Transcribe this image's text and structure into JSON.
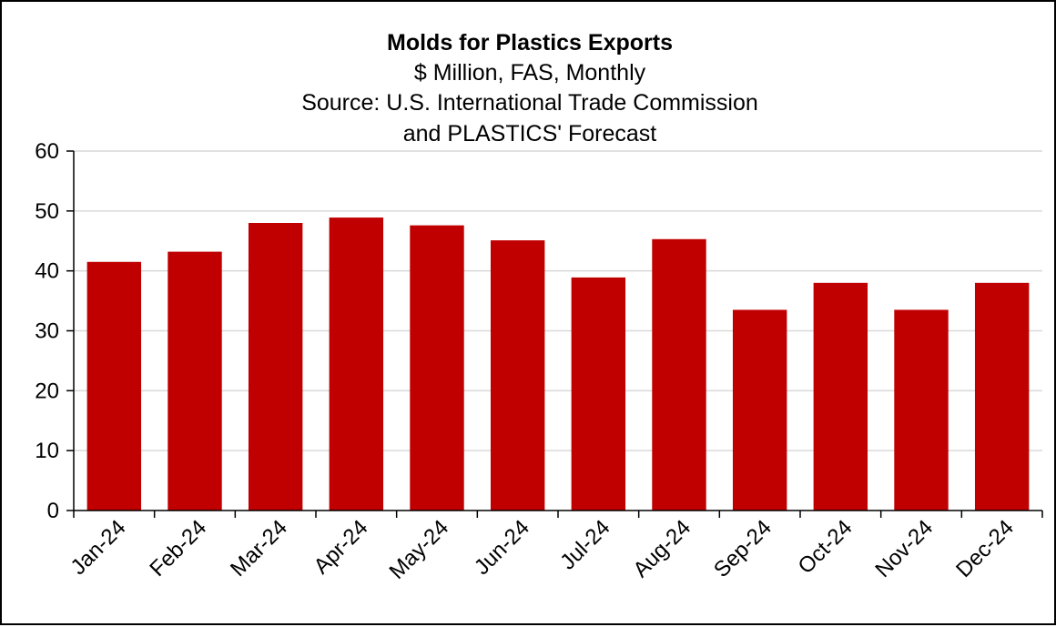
{
  "chart_data": {
    "type": "bar",
    "title": "Molds for Plastics Exports",
    "subtitle_lines": [
      "$ Million, FAS, Monthly",
      "Source: U.S. International Trade Commission",
      "and PLASTICS' Forecast"
    ],
    "categories": [
      "Jan-24",
      "Feb-24",
      "Mar-24",
      "Apr-24",
      "May-24",
      "Jun-24",
      "Jul-24",
      "Aug-24",
      "Sep-24",
      "Oct-24",
      "Nov-24",
      "Dec-24"
    ],
    "values": [
      41.5,
      43.2,
      48.0,
      48.9,
      47.6,
      45.1,
      38.9,
      45.3,
      33.5,
      38.0,
      33.5,
      38.0
    ],
    "yticks": [
      "0",
      "10",
      "20",
      "30",
      "40",
      "50",
      "60"
    ],
    "ylim": [
      0,
      60
    ],
    "grid": true,
    "legend": "none",
    "bar_color": "#C00000",
    "grid_color": "#D9D9D9"
  }
}
